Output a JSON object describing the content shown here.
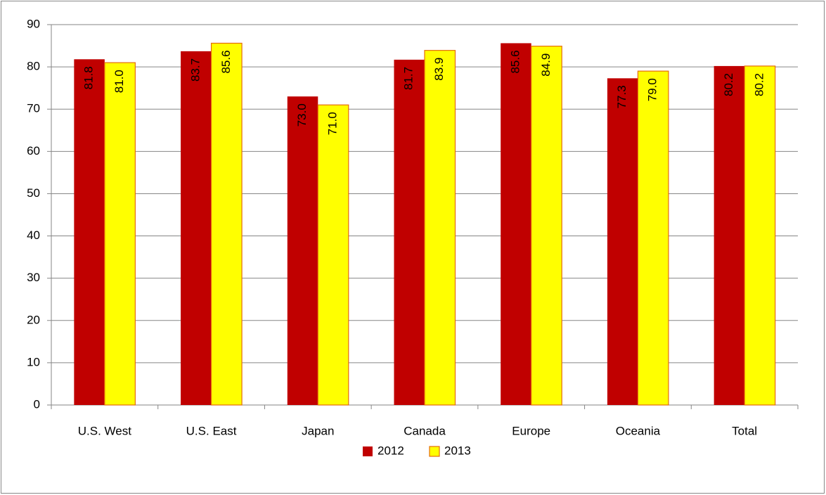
{
  "chart_data": {
    "type": "bar",
    "categories": [
      "U.S. West",
      "U.S. East",
      "Japan",
      "Canada",
      "Europe",
      "Oceania",
      "Total"
    ],
    "series": [
      {
        "name": "2012",
        "color": "#c00000",
        "values": [
          81.8,
          83.7,
          73.0,
          81.7,
          85.6,
          77.3,
          80.2
        ],
        "value_labels": [
          "81.8",
          "83.7",
          "73.0",
          "81.7",
          "85.6",
          "77.3",
          "80.2"
        ]
      },
      {
        "name": "2013",
        "color": "#ffff00",
        "values": [
          81.0,
          85.6,
          71.0,
          83.9,
          84.9,
          79.0,
          80.2
        ],
        "value_labels": [
          "81.0",
          "85.6",
          "71.0",
          "83.9",
          "84.9",
          "79.0",
          "80.2"
        ]
      }
    ],
    "ylim": [
      0,
      90
    ],
    "yticks": [
      0,
      10,
      20,
      30,
      40,
      50,
      60,
      70,
      80,
      90
    ],
    "grid": true,
    "legend": "bottom"
  }
}
